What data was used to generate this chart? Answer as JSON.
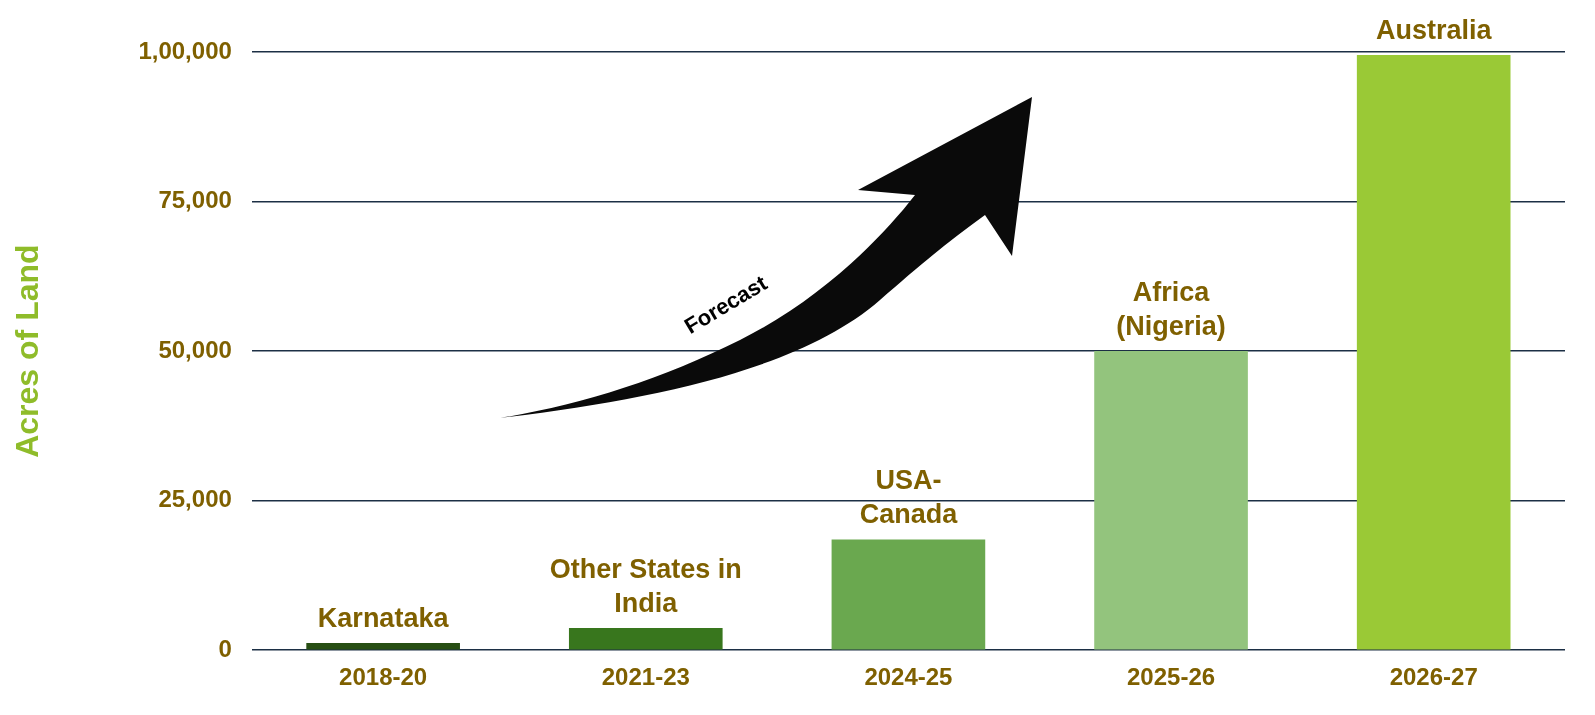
{
  "chart_data": {
    "type": "bar",
    "ylabel": "Acres of Land",
    "categories": [
      "2018-20",
      "2021-23",
      "2024-25",
      "2025-26",
      "2026-27"
    ],
    "values": [
      1200,
      3700,
      18500,
      50000,
      99500
    ],
    "colors": [
      "#274e13",
      "#38761d",
      "#6aa84f",
      "#93c47d",
      "#9ac936"
    ],
    "ylim": [
      0,
      100000
    ],
    "yticks": [
      {
        "value": 0,
        "label": "0"
      },
      {
        "value": 25000,
        "label": "25,000"
      },
      {
        "value": 50000,
        "label": "50,000"
      },
      {
        "value": 75000,
        "label": "75,000"
      },
      {
        "value": 100000,
        "label": "1,00,000"
      }
    ],
    "grid": "y",
    "legend": false,
    "annotations": [
      {
        "text": "Karnataka",
        "x": "2018-20",
        "y": 1200
      },
      {
        "text": "Other States in\nIndia",
        "x": "2021-23",
        "y": 3700
      },
      {
        "text": "USA-\nCanada",
        "x": "2024-25",
        "y": 18500
      },
      {
        "text": "Africa\n(Nigeria)",
        "x": "2025-26",
        "y": 50000
      },
      {
        "text": "Australia",
        "x": "2026-27",
        "y": 99500
      },
      "Forecast"
    ]
  }
}
